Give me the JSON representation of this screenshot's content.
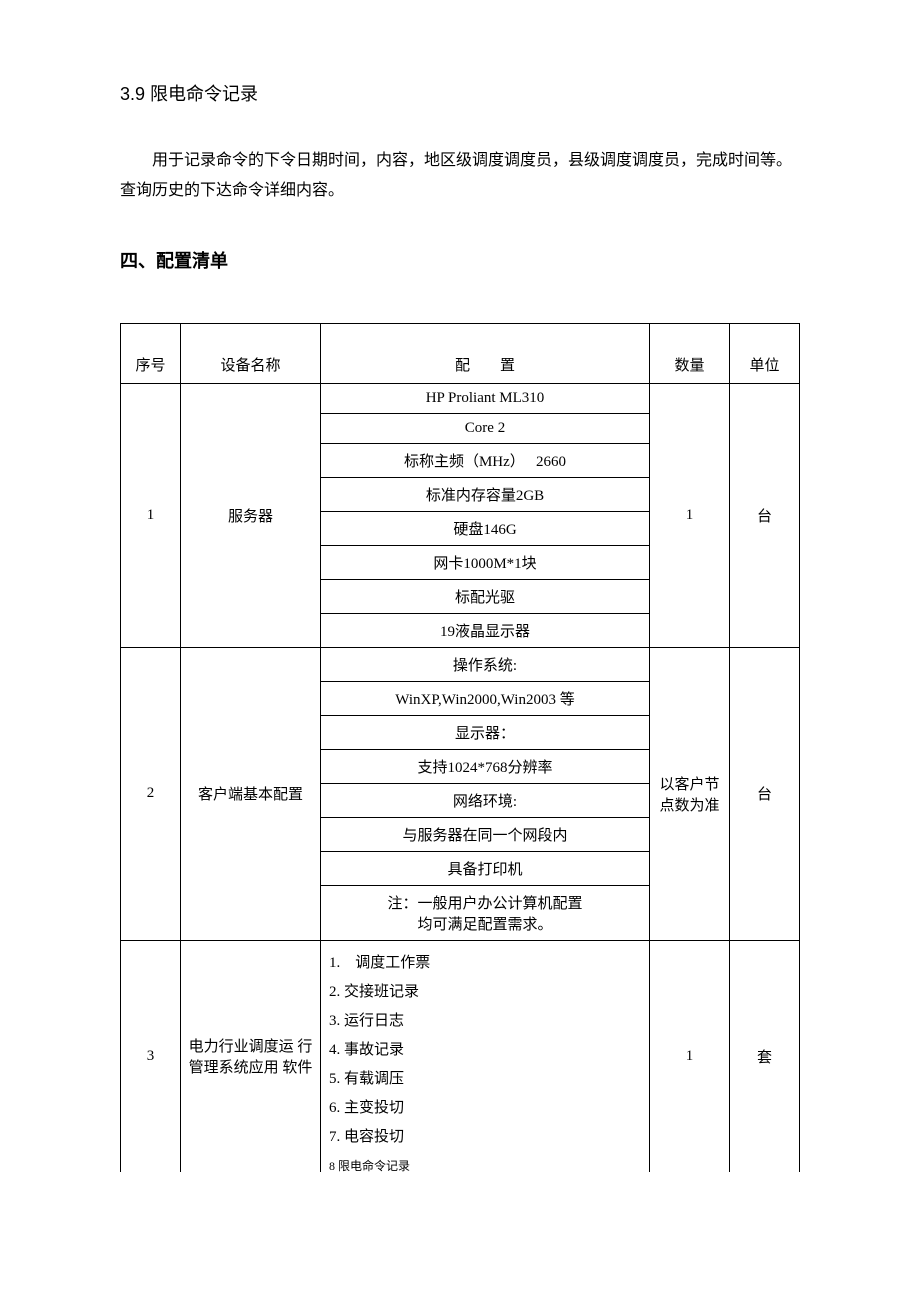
{
  "section39": {
    "title": "3.9 限电命令记录",
    "body": "用于记录命令的下令日期时间，内容，地区级调度调度员，县级调度调度员，完成时间等。查询历史的下达命令详细内容。"
  },
  "section4": {
    "title": "四、配置清单"
  },
  "table": {
    "headers": {
      "seq": "序号",
      "name": "设备名称",
      "config": "配　　置",
      "qty": "数量",
      "unit": "单位"
    },
    "rows": [
      {
        "seq": "1",
        "name": "服务器",
        "config_lines": [
          "HP Proliant ML310",
          "Core 2",
          "标称主频（MHz）　 2660",
          "标准内存容量2GB",
          "硬盘146G",
          "网卡1000M*1块",
          "标配光驱",
          "19液晶显示器"
        ],
        "qty": "1",
        "unit": "台"
      },
      {
        "seq": "2",
        "name": "客户端基本配置",
        "config_lines": [
          "操作系统:",
          "WinXP,Win2000,Win2003 等",
          "显示器：",
          "支持1024*768分辨率",
          "网络环境:",
          "与服务器在同一个网段内",
          "具备打印机"
        ],
        "config_note_lines": [
          "注：一般用户办公计算机配置",
          "均可满足配置需求。"
        ],
        "qty": "以客户节点数为准",
        "unit": "台"
      },
      {
        "seq": "3",
        "name": "电力行业调度运 行管理系统应用 软件",
        "config_list": [
          "1.　调度工作票",
          "2. 交接班记录",
          "3. 运行日志",
          "4. 事故记录",
          "5. 有载调压",
          "6. 主变投切",
          "7. 电容投切"
        ],
        "cutoff_line": "8 限电命令记录",
        "qty": "1",
        "unit": "套"
      }
    ]
  }
}
